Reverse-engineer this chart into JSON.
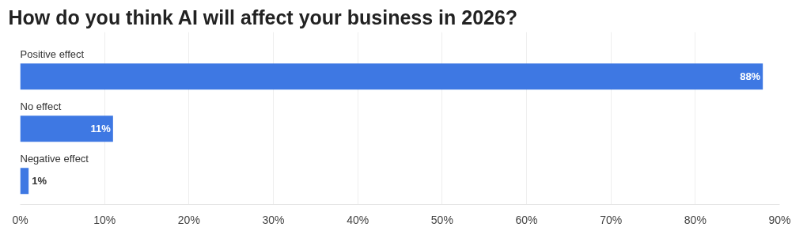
{
  "chart_data": {
    "type": "bar",
    "orientation": "horizontal",
    "title": "How do you think AI will affect your business in 2026?",
    "categories": [
      "Positive effect",
      "No effect",
      "Negative effect"
    ],
    "values": [
      88,
      11,
      1
    ],
    "color": "#3e78e3",
    "value_labels": [
      "88%",
      "11%",
      "1%"
    ],
    "xlim": [
      0,
      90
    ],
    "xticks": [
      {
        "value": 0,
        "label": "0%"
      },
      {
        "value": 10,
        "label": "10%"
      },
      {
        "value": 20,
        "label": "20%"
      },
      {
        "value": 30,
        "label": "30%"
      },
      {
        "value": 40,
        "label": "40%"
      },
      {
        "value": 50,
        "label": "50%"
      },
      {
        "value": 60,
        "label": "60%"
      },
      {
        "value": 70,
        "label": "70%"
      },
      {
        "value": 80,
        "label": "80%"
      },
      {
        "value": 90,
        "label": "90%"
      }
    ],
    "grid": "x"
  }
}
